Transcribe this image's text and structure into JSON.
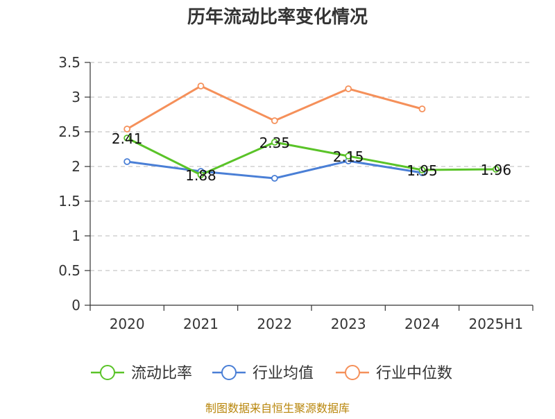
{
  "chart_data": {
    "type": "line",
    "title": "历年流动比率变化情况",
    "categories": [
      "2020",
      "2021",
      "2022",
      "2023",
      "2024",
      "2025H1"
    ],
    "y_ticks": [
      "0",
      "0.5",
      "1",
      "1.5",
      "2",
      "2.5",
      "3",
      "3.5"
    ],
    "ylim": [
      0,
      3.5
    ],
    "grid": true,
    "legend_position": "bottom",
    "series": [
      {
        "name": "流动比率",
        "color": "#5ac328",
        "values": [
          2.41,
          1.88,
          2.35,
          2.15,
          1.95,
          1.96
        ],
        "data_labels": [
          "2.41",
          "1.88",
          "2.35",
          "2.15",
          "1.95",
          "1.96"
        ]
      },
      {
        "name": "行业均值",
        "color": "#4a7fd6",
        "values": [
          2.07,
          1.93,
          1.83,
          2.08,
          1.91,
          null
        ]
      },
      {
        "name": "行业中位数",
        "color": "#f5905a",
        "values": [
          2.54,
          3.16,
          2.66,
          3.12,
          2.83,
          null
        ]
      }
    ],
    "source": "制图数据来自恒生聚源数据库"
  }
}
